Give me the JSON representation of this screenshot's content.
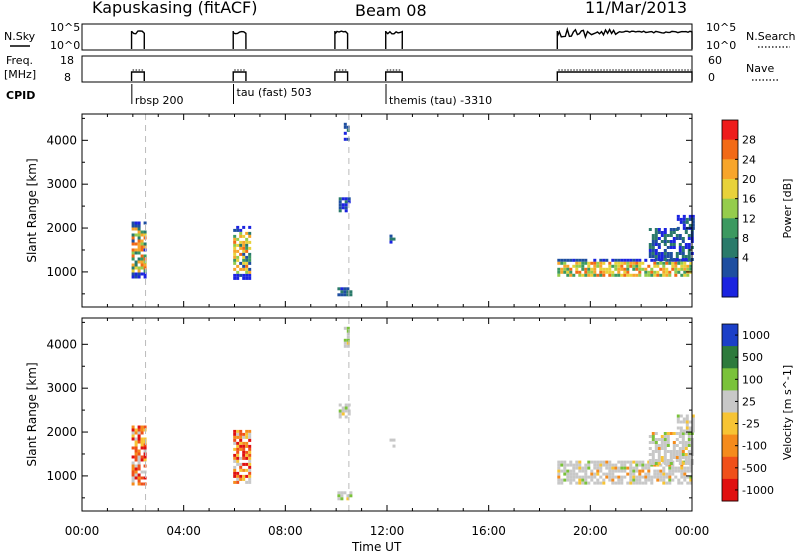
{
  "header": {
    "station": "Kapuskasing (fitACF)",
    "beam": "Beam 08",
    "date": "11/Mar/2013"
  },
  "strip": {
    "nsky_label": "N.Sky",
    "nsky_ticks": [
      "10^5",
      "10^0"
    ],
    "nsearch_label": "N.Search",
    "nsearch_ticks": [
      "10^5",
      "10^0"
    ],
    "freq_label": "Freq.",
    "freq_unit": "[MHz]",
    "freq_ticks": [
      "18",
      "8"
    ],
    "nave_label": "Nave",
    "nave_ticks": [
      "60",
      "0"
    ],
    "cpid_label": "CPID"
  },
  "cpid_annotations": [
    {
      "label": "rbsp 200",
      "hour": 2.0
    },
    {
      "label": "tau (fast) 503",
      "hour": 6.0
    },
    {
      "label": "themis (tau) -3310",
      "hour": 12.0
    }
  ],
  "time_axis": {
    "label": "Time UT",
    "ticks": [
      "00:00",
      "04:00",
      "08:00",
      "12:00",
      "16:00",
      "20:00",
      "00:00"
    ],
    "range_hours": [
      0,
      24
    ]
  },
  "chart_data": [
    {
      "type": "heatmap",
      "panel": "power",
      "ylabel": "Slant Range [km]",
      "yticks": [
        "1000",
        "2000",
        "3000",
        "4000"
      ],
      "ylim": [
        200,
        4600
      ],
      "colorbar_label": "Power [dB]",
      "colorbar_ticks": [
        "28",
        "24",
        "20",
        "16",
        "12",
        "8",
        "4"
      ],
      "colorbar_colors": [
        "#ee1c1c",
        "#f26a16",
        "#f7a52b",
        "#e8d23a",
        "#95cc4c",
        "#3c9960",
        "#2a7a6a",
        "#1e4ea0",
        "#1b23e0"
      ],
      "dashed_marker_hours": [
        2.5,
        10.5
      ],
      "echo_blocks": [
        {
          "t0": 1.95,
          "t1": 2.45,
          "r0": 900,
          "r1": 2150
        },
        {
          "t0": 5.95,
          "t1": 6.65,
          "r0": 850,
          "r1": 2050
        },
        {
          "t0": 10.1,
          "t1": 10.55,
          "r0": 2400,
          "r1": 2700
        },
        {
          "t0": 10.3,
          "t1": 10.45,
          "r0": 4000,
          "r1": 4400
        },
        {
          "t0": 10.05,
          "t1": 10.55,
          "r0": 500,
          "r1": 650
        },
        {
          "t0": 12.1,
          "t1": 12.3,
          "r0": 1700,
          "r1": 1850
        },
        {
          "t0": 18.7,
          "t1": 24.0,
          "r0": 950,
          "r1": 1300
        },
        {
          "t0": 22.3,
          "t1": 24.0,
          "r0": 1300,
          "r1": 2000
        },
        {
          "t0": 23.4,
          "t1": 24.0,
          "r0": 2000,
          "r1": 2300
        }
      ]
    },
    {
      "type": "heatmap",
      "panel": "velocity",
      "ylabel": "Slant Range [km]",
      "yticks": [
        "1000",
        "2000",
        "3000",
        "4000"
      ],
      "ylim": [
        200,
        4600
      ],
      "colorbar_label": "Velocity [m s^-1]",
      "colorbar_ticks": [
        "1000",
        "500",
        "100",
        "25",
        "-25",
        "-100",
        "-500",
        "-1000"
      ],
      "colorbar_colors": [
        "#1b3fc8",
        "#2d7a3c",
        "#7ac23a",
        "#c8c8c8",
        "#f7c434",
        "#f58b1c",
        "#f0501a",
        "#e01010"
      ],
      "dashed_marker_hours": [
        2.5,
        10.5
      ],
      "echo_blocks": [
        {
          "t0": 1.95,
          "t1": 2.45,
          "r0": 850,
          "r1": 2150
        },
        {
          "t0": 5.95,
          "t1": 6.65,
          "r0": 850,
          "r1": 2050
        },
        {
          "t0": 10.1,
          "t1": 10.55,
          "r0": 2350,
          "r1": 2650
        },
        {
          "t0": 10.3,
          "t1": 10.45,
          "r0": 3950,
          "r1": 4400
        },
        {
          "t0": 10.05,
          "t1": 10.55,
          "r0": 500,
          "r1": 650
        },
        {
          "t0": 12.1,
          "t1": 12.3,
          "r0": 1700,
          "r1": 1850
        },
        {
          "t0": 18.7,
          "t1": 24.0,
          "r0": 850,
          "r1": 1350
        },
        {
          "t0": 22.3,
          "t1": 24.0,
          "r0": 1300,
          "r1": 2000
        },
        {
          "t0": 23.4,
          "t1": 24.0,
          "r0": 2000,
          "r1": 2400
        }
      ]
    }
  ],
  "scan_segments": [
    {
      "t0": 1.95,
      "t1": 2.45
    },
    {
      "t0": 5.95,
      "t1": 6.45
    },
    {
      "t0": 9.95,
      "t1": 10.45
    },
    {
      "t0": 11.95,
      "t1": 12.6
    },
    {
      "t0": 18.7,
      "t1": 24.0
    }
  ]
}
